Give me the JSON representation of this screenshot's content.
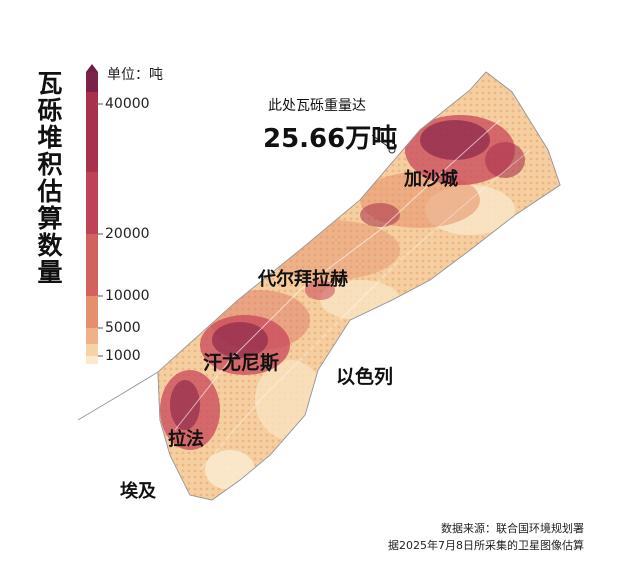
{
  "legend": {
    "title": "瓦砾堆积估算数量",
    "unit": "单位：吨",
    "ticks": [
      "40000",
      "20000",
      "10000",
      "5000",
      "1000"
    ],
    "colors": [
      "#6e1e46",
      "#a8324e",
      "#c8475a",
      "#de7a66",
      "#efb08a",
      "#f7d9b0",
      "#fbe9cd"
    ]
  },
  "annotation": {
    "label": "此处瓦砾重量达",
    "value": "25.66万吨"
  },
  "places": {
    "gaza_city": "加沙城",
    "deir_al_balah": "代尔拜拉赫",
    "khan_younis": "汗尤尼斯",
    "rafah": "拉法",
    "israel": "以色列",
    "egypt": "埃及"
  },
  "source": {
    "line1": "数据来源：联合国环境规划署",
    "line2": "据2025年7月8日所采集的卫星图像估算"
  }
}
